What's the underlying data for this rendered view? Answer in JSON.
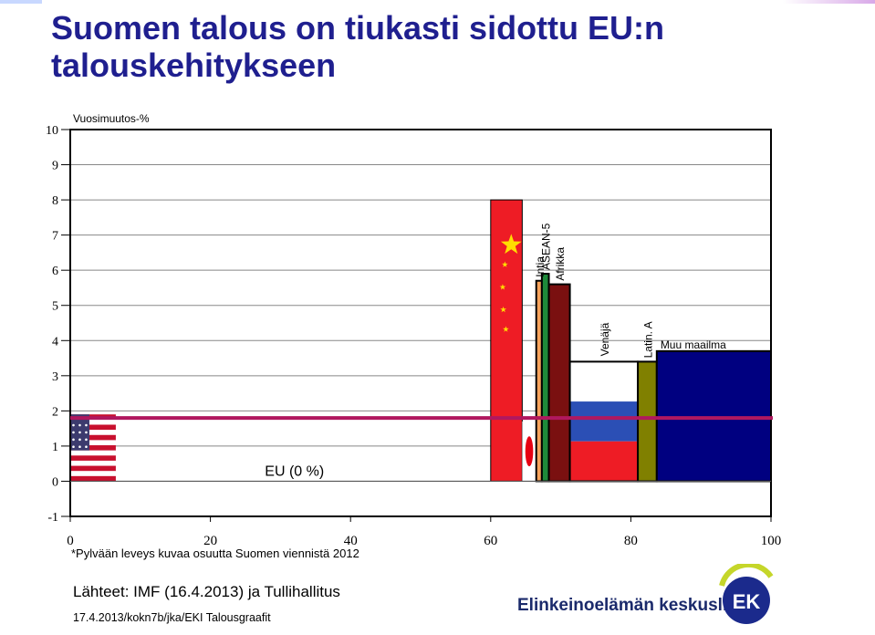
{
  "slide": {
    "title_line1": "Suomen talous on tiukasti sidottu EU:n",
    "title_line2": "talouskehitykseen",
    "footnote": "*Pylvään leveys kuvaa osuutta Suomen viennistä 2012",
    "source": "Lähteet: IMF (16.4.2013) ja Tullihallitus",
    "credit": "17.4.2013/kokn7b/jka/EKI Talousgraafit",
    "organization": "Elinkeinoelämän keskusliitto",
    "logo_text": "EK"
  },
  "colors": {
    "title": "#1f1f8f",
    "eu_line": "#b0185f",
    "usa_flag": "#c8102e",
    "china": "#ee1c25",
    "india": "#f7a35c",
    "asean": "#1e8a3a",
    "africa": "#7a1010",
    "russia_blue": "#2b4fb5",
    "russia_red": "#ee1c25",
    "latin": "#808000",
    "rest": "#000080"
  },
  "chart_data": {
    "type": "bar",
    "variant": "variable-width bar chart",
    "ylabel": "Vuosimuutos-%",
    "xlim": [
      0,
      100
    ],
    "ylim": [
      -1,
      10
    ],
    "x_ticks": [
      0,
      20,
      40,
      60,
      80,
      100
    ],
    "y_ticks": [
      -1,
      0,
      1,
      2,
      3,
      4,
      5,
      6,
      7,
      8,
      9,
      10
    ],
    "grid": true,
    "series": [
      {
        "label": "",
        "x_start": 0,
        "x_end": 6.5,
        "value": 1.9,
        "fill": "usa-flag"
      },
      {
        "label": "EU (0 %)",
        "x_start": 6.5,
        "x_end": 60,
        "value": 0.0,
        "fill": "none"
      },
      {
        "label": "",
        "x_start": 60,
        "x_end": 64.5,
        "value": 8.0,
        "fill": "china-flag"
      },
      {
        "label": "",
        "x_start": 64.5,
        "x_end": 66.5,
        "value": 1.7,
        "fill": "japan-flag"
      },
      {
        "label": "Intia",
        "x_start": 66.5,
        "x_end": 67.3,
        "value": 5.7,
        "fill": "#f7a35c"
      },
      {
        "label": "ASEAN-5",
        "x_start": 67.3,
        "x_end": 68.3,
        "value": 5.9,
        "fill": "#1e8a3a"
      },
      {
        "label": "Afrikka",
        "x_start": 68.3,
        "x_end": 71.3,
        "value": 5.6,
        "fill": "#7a1010"
      },
      {
        "label": "Venäjä",
        "x_start": 71.3,
        "x_end": 81.0,
        "value": 3.4,
        "fill": "russia-flag"
      },
      {
        "label": "Latin. A",
        "x_start": 81.0,
        "x_end": 83.7,
        "value": 3.4,
        "fill": "#808000"
      },
      {
        "label": "Muu maailma",
        "x_start": 83.7,
        "x_end": 100,
        "value": 3.7,
        "fill": "#000080"
      }
    ],
    "reference_line": {
      "y": 1.8
    }
  }
}
